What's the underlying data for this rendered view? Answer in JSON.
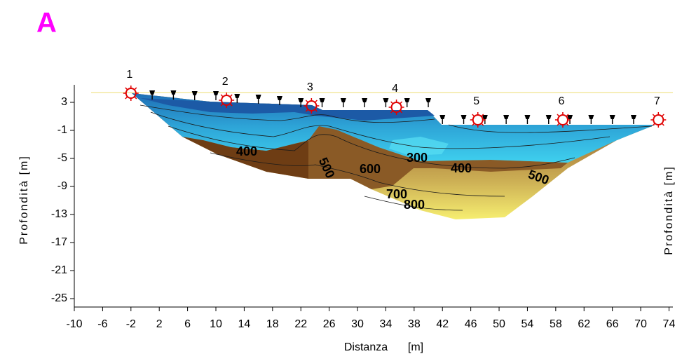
{
  "chart_data": {
    "type": "tomography",
    "panel_label": "A",
    "ylabel": "Profondità [m]",
    "y2label": "Profondità [m]",
    "xlabel": "Distanza",
    "xlabel_unit": "[m]",
    "xlim": [
      -10,
      74.5
    ],
    "xticks": [
      -10,
      -6,
      -2,
      2,
      6,
      10,
      14,
      18,
      22,
      26,
      30,
      34,
      38,
      42,
      46,
      50,
      54,
      58,
      62,
      66,
      70,
      74
    ],
    "ylim": [
      -26.2,
      5.5
    ],
    "yticks": [
      3,
      -1,
      -5,
      -9,
      -13,
      -17,
      -21,
      -25
    ],
    "shots": {
      "labels": [
        1,
        2,
        3,
        4,
        5,
        6,
        7
      ],
      "x": [
        -2,
        11.5,
        23.5,
        35.5,
        47,
        59,
        72.5
      ],
      "y": [
        4.3,
        3.3,
        2.5,
        2.3,
        0.5,
        0.5,
        0.5
      ]
    },
    "receivers": {
      "x": [
        1,
        4,
        7,
        10,
        13,
        16,
        19,
        22,
        25,
        28,
        31,
        34,
        37,
        40,
        42,
        45,
        48,
        51,
        54,
        57,
        60,
        63,
        66,
        69
      ],
      "y": [
        4.1,
        4.1,
        4.0,
        4.0,
        3.6,
        3.5,
        3.3,
        3.0,
        3.0,
        3.0,
        3.0,
        3.0,
        3.0,
        3.0,
        0.6,
        0.6,
        0.6,
        0.6,
        0.6,
        0.6,
        0.6,
        0.6,
        0.6,
        0.6
      ]
    },
    "contour_labels": [
      400,
      500,
      300,
      400,
      600,
      500,
      700,
      800
    ]
  }
}
